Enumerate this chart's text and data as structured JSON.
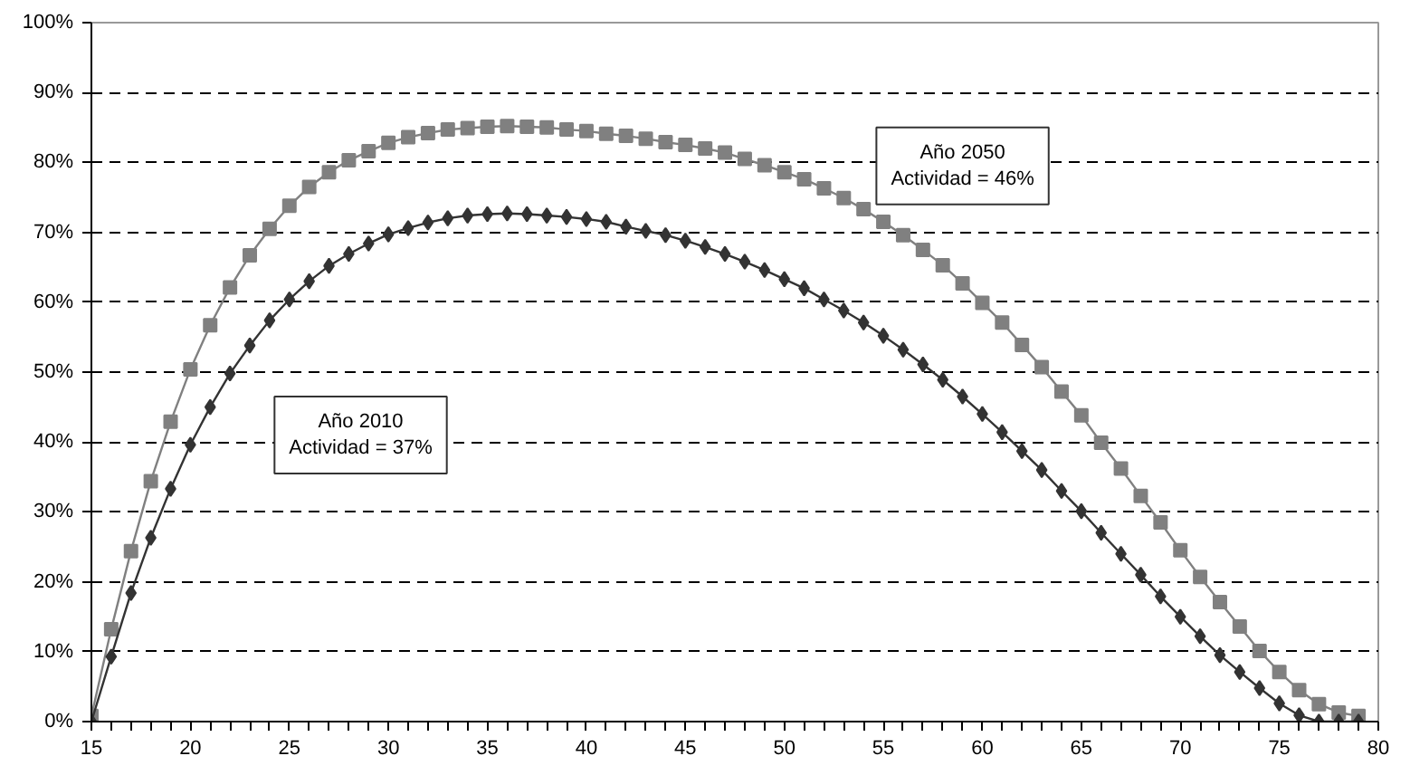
{
  "chart_data": {
    "type": "line",
    "x": [
      15,
      16,
      17,
      18,
      19,
      20,
      21,
      22,
      23,
      24,
      25,
      26,
      27,
      28,
      29,
      30,
      31,
      32,
      33,
      34,
      35,
      36,
      37,
      38,
      39,
      40,
      41,
      42,
      43,
      44,
      45,
      46,
      47,
      48,
      49,
      50,
      51,
      52,
      53,
      54,
      55,
      56,
      57,
      58,
      59,
      60,
      61,
      62,
      63,
      64,
      65,
      66,
      67,
      68,
      69,
      70,
      71,
      72,
      73,
      74,
      75,
      76,
      77,
      78,
      79
    ],
    "series": [
      {
        "color": "#808080",
        "marker": "square",
        "values": [
          0.8,
          13.2,
          24.4,
          34.4,
          42.9,
          50.4,
          56.7,
          62.1,
          66.7,
          70.5,
          73.8,
          76.5,
          78.6,
          80.3,
          81.6,
          82.8,
          83.6,
          84.2,
          84.7,
          84.9,
          85.1,
          85.2,
          85.1,
          85.0,
          84.7,
          84.5,
          84.1,
          83.8,
          83.4,
          82.9,
          82.5,
          82.0,
          81.4,
          80.5,
          79.6,
          78.6,
          77.6,
          76.3,
          74.9,
          73.3,
          71.5,
          69.6,
          67.5,
          65.3,
          62.7,
          59.9,
          57.1,
          53.9,
          50.7,
          47.2,
          43.8,
          39.9,
          36.2,
          32.3,
          28.5,
          24.5,
          20.7,
          17.1,
          13.6,
          10.1,
          7.1,
          4.5,
          2.5,
          1.3,
          0.8
        ]
      },
      {
        "color": "#333333",
        "marker": "diamond",
        "values": [
          0,
          9.3,
          18.4,
          26.3,
          33.3,
          39.6,
          45.0,
          49.8,
          53.8,
          57.4,
          60.4,
          63.0,
          65.2,
          66.9,
          68.4,
          69.7,
          70.6,
          71.4,
          72.0,
          72.4,
          72.6,
          72.7,
          72.6,
          72.4,
          72.2,
          71.9,
          71.5,
          70.8,
          70.2,
          69.6,
          68.8,
          67.9,
          66.9,
          65.8,
          64.6,
          63.3,
          62.0,
          60.4,
          58.8,
          57.1,
          55.2,
          53.2,
          51.1,
          48.9,
          46.5,
          44.0,
          41.4,
          38.7,
          36.0,
          33.0,
          30.1,
          27.0,
          24.0,
          21.0,
          17.9,
          15.0,
          12.2,
          9.5,
          7.1,
          4.8,
          2.6,
          0.9,
          0,
          0,
          0
        ]
      }
    ],
    "xlim": [
      15,
      80
    ],
    "xticks": [
      15,
      {
        "value": 16,
        "label": null
      },
      {
        "value": 17,
        "label": null
      },
      {
        "value": 18,
        "label": null
      },
      {
        "value": 19,
        "label": null
      },
      20,
      {
        "value": 21,
        "label": null
      },
      {
        "value": 22,
        "label": null
      },
      {
        "value": 23,
        "label": null
      },
      {
        "value": 24,
        "label": null
      },
      25,
      {
        "value": 26,
        "label": null
      },
      {
        "value": 27,
        "label": null
      },
      {
        "value": 28,
        "label": null
      },
      {
        "value": 29,
        "label": null
      },
      30,
      {
        "value": 31,
        "label": null
      },
      {
        "value": 32,
        "label": null
      },
      {
        "value": 33,
        "label": null
      },
      {
        "value": 34,
        "label": null
      },
      35,
      {
        "value": 36,
        "label": null
      },
      {
        "value": 37,
        "label": null
      },
      {
        "value": 38,
        "label": null
      },
      {
        "value": 39,
        "label": null
      },
      40,
      {
        "value": 41,
        "label": null
      },
      {
        "value": 42,
        "label": null
      },
      {
        "value": 43,
        "label": null
      },
      {
        "value": 44,
        "label": null
      },
      45,
      {
        "value": 46,
        "label": null
      },
      {
        "value": 47,
        "label": null
      },
      {
        "value": 48,
        "label": null
      },
      {
        "value": 49,
        "label": null
      },
      50,
      {
        "value": 51,
        "label": null
      },
      {
        "value": 52,
        "label": null
      },
      {
        "value": 53,
        "label": null
      },
      {
        "value": 54,
        "label": null
      },
      55,
      {
        "value": 56,
        "label": null
      },
      {
        "value": 57,
        "label": null
      },
      {
        "value": 58,
        "label": null
      },
      {
        "value": 59,
        "label": null
      },
      60,
      {
        "value": 61,
        "label": null
      },
      {
        "value": 62,
        "label": null
      },
      {
        "value": 63,
        "label": null
      },
      {
        "value": 64,
        "label": null
      },
      65,
      {
        "value": 66,
        "label": null
      },
      {
        "value": 67,
        "label": null
      },
      {
        "value": 68,
        "label": null
      },
      {
        "value": 69,
        "label": null
      },
      70,
      {
        "value": 71,
        "label": null
      },
      {
        "value": 72,
        "label": null
      },
      {
        "value": 73,
        "label": null
      },
      {
        "value": 74,
        "label": null
      },
      75,
      {
        "value": 76,
        "label": null
      },
      {
        "value": 77,
        "label": null
      },
      {
        "value": 78,
        "label": null
      },
      {
        "value": 79,
        "label": null
      },
      80
    ],
    "ylim": [
      0,
      100
    ],
    "yticks": [
      {
        "value": 0,
        "label": "0%"
      },
      {
        "value": 10,
        "label": "10%"
      },
      {
        "value": 20,
        "label": "20%"
      },
      {
        "value": 30,
        "label": "30%"
      },
      {
        "value": 40,
        "label": "40%"
      },
      {
        "value": 50,
        "label": "50%"
      },
      {
        "value": 60,
        "label": "60%"
      },
      {
        "value": 70,
        "label": "70%"
      },
      {
        "value": 80,
        "label": "80%"
      },
      {
        "value": 90,
        "label": "90%"
      },
      {
        "value": 100,
        "label": "100%"
      }
    ],
    "grid": "y",
    "line_style": "solid",
    "annotations": [
      "Año 2010\nActividad = 37%",
      "Año 2050\nActividad = 46%"
    ]
  }
}
